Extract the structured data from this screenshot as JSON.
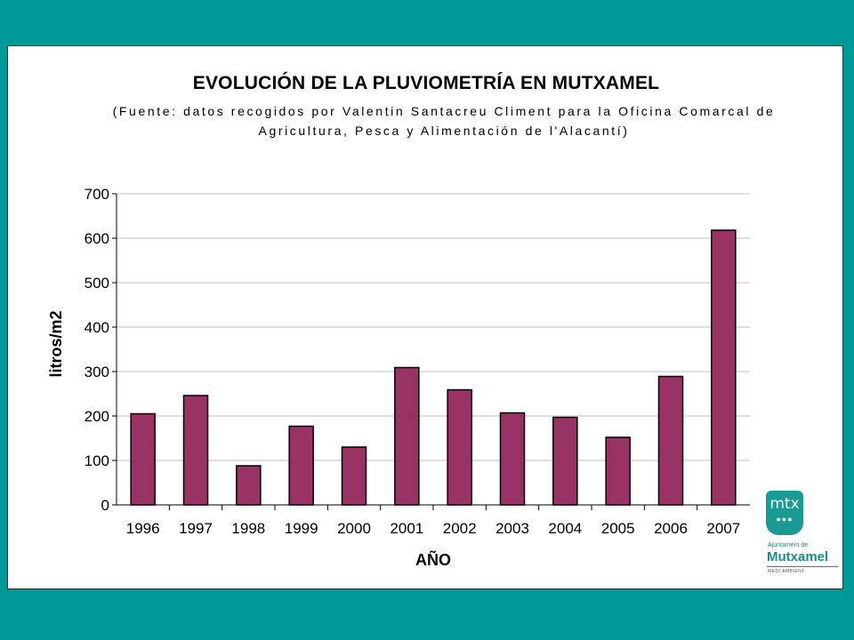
{
  "chart_data": {
    "type": "bar",
    "title": "EVOLUCIÓN DE LA PLUVIOMETRÍA EN MUTXAMEL",
    "subtitle_line1": "(Fuente: datos recogidos por Valentin Santacreu Climent para la Oficina Comarcal de",
    "subtitle_line2": "Agricultura, Pesca y Alimentación de l'Alacantí)",
    "xlabel": "AÑO",
    "ylabel": "litros/m2",
    "categories": [
      "1996",
      "1997",
      "1998",
      "1999",
      "2000",
      "2001",
      "2002",
      "2003",
      "2004",
      "2005",
      "2006",
      "2007"
    ],
    "values": [
      205,
      246,
      88,
      177,
      130,
      309,
      259,
      207,
      197,
      152,
      289,
      618
    ],
    "ylim": [
      0,
      700
    ],
    "yticks": [
      0,
      100,
      200,
      300,
      400,
      500,
      600,
      700
    ],
    "grid": true,
    "bar_color": "#993366"
  },
  "logo": {
    "mark_text": "mtx",
    "dots": "●●●",
    "line1": "Ajuntament de",
    "line2": "Mutxamel",
    "line3": "MEDI AMBIENT"
  },
  "colors": {
    "background": "#009999",
    "logo": "#1a9a95"
  }
}
